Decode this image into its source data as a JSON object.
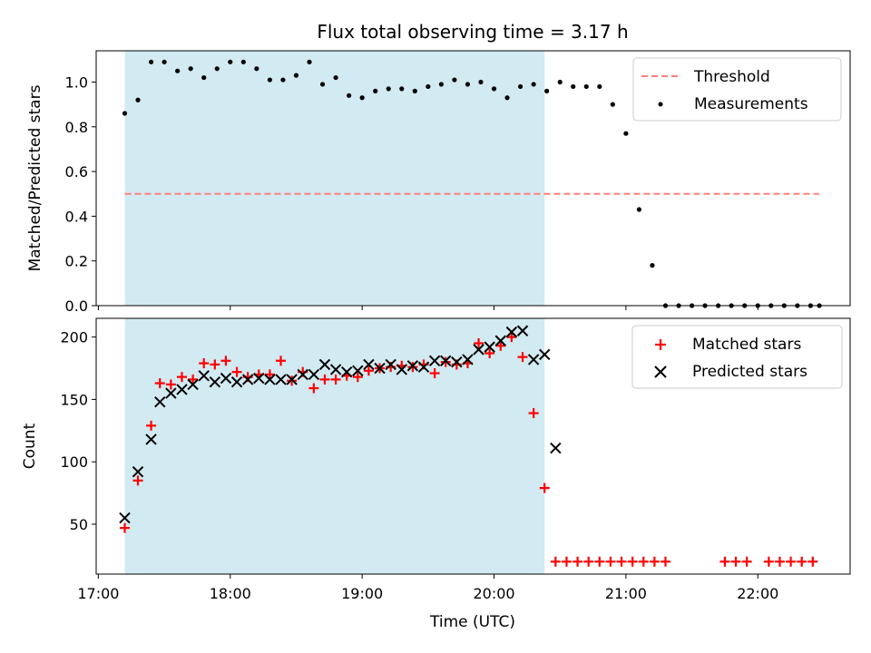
{
  "title": "Flux total observing time = 3.17 h",
  "colors": {
    "shade": "#add8e6",
    "threshold": "#ff7f7f",
    "measurement": "#000000",
    "matched": "#ff0000",
    "predicted": "#000000"
  },
  "chart_data": [
    {
      "type": "scatter",
      "ylabel": "Matched/Predicted stars",
      "ylim": [
        0,
        1.14
      ],
      "yticks": [
        "0.0",
        "0.2",
        "0.4",
        "0.6",
        "0.8",
        "1.0"
      ],
      "shade_range": [
        "17:12",
        "20:23"
      ],
      "legend": {
        "placement": "top-right",
        "entries": [
          "Threshold",
          "Measurements"
        ]
      },
      "threshold": {
        "name": "Threshold",
        "value": 0.5,
        "x_range": [
          "17:12",
          "22:28"
        ]
      },
      "series": [
        {
          "name": "Measurements",
          "points": [
            [
              "17:12",
              0.86
            ],
            [
              "17:18",
              0.92
            ],
            [
              "17:24",
              1.09
            ],
            [
              "17:30",
              1.09
            ],
            [
              "17:36",
              1.05
            ],
            [
              "17:42",
              1.06
            ],
            [
              "17:48",
              1.02
            ],
            [
              "17:54",
              1.06
            ],
            [
              "18:00",
              1.09
            ],
            [
              "18:06",
              1.09
            ],
            [
              "18:12",
              1.06
            ],
            [
              "18:18",
              1.01
            ],
            [
              "18:24",
              1.01
            ],
            [
              "18:30",
              1.03
            ],
            [
              "18:36",
              1.09
            ],
            [
              "18:42",
              0.99
            ],
            [
              "18:48",
              1.02
            ],
            [
              "18:54",
              0.94
            ],
            [
              "19:00",
              0.93
            ],
            [
              "19:06",
              0.96
            ],
            [
              "19:12",
              0.97
            ],
            [
              "19:18",
              0.97
            ],
            [
              "19:24",
              0.96
            ],
            [
              "19:30",
              0.98
            ],
            [
              "19:36",
              0.99
            ],
            [
              "19:42",
              1.01
            ],
            [
              "19:48",
              0.99
            ],
            [
              "19:54",
              1.0
            ],
            [
              "20:00",
              0.97
            ],
            [
              "20:06",
              0.93
            ],
            [
              "20:12",
              0.98
            ],
            [
              "20:18",
              0.99
            ],
            [
              "20:24",
              0.96
            ],
            [
              "20:30",
              1.0
            ],
            [
              "20:36",
              0.98
            ],
            [
              "20:42",
              0.98
            ],
            [
              "20:48",
              0.98
            ],
            [
              "20:54",
              0.9
            ],
            [
              "21:00",
              0.77
            ],
            [
              "21:06",
              0.43
            ],
            [
              "21:12",
              0.18
            ],
            [
              "21:18",
              0.0
            ],
            [
              "21:24",
              0.0
            ],
            [
              "21:30",
              0.0
            ],
            [
              "21:36",
              0.0
            ],
            [
              "21:42",
              0.0
            ],
            [
              "21:48",
              0.0
            ],
            [
              "21:54",
              0.0
            ],
            [
              "22:00",
              0.0
            ],
            [
              "22:06",
              0.0
            ],
            [
              "22:12",
              0.0
            ],
            [
              "22:18",
              0.0
            ],
            [
              "22:24",
              0.0
            ],
            [
              "22:28",
              0.0
            ]
          ]
        }
      ]
    },
    {
      "type": "scatter",
      "xlabel": "Time (UTC)",
      "ylabel": "Count",
      "ylim": [
        10,
        215
      ],
      "yticks": [
        "50",
        "100",
        "150",
        "200"
      ],
      "xlim": [
        "16:59",
        "22:42"
      ],
      "xticks": [
        "17:00",
        "18:00",
        "19:00",
        "20:00",
        "21:00",
        "22:00"
      ],
      "shade_range": [
        "17:12",
        "20:23"
      ],
      "legend": {
        "placement": "top-right",
        "entries": [
          "Matched stars",
          "Predicted stars"
        ]
      },
      "series": [
        {
          "name": "Matched stars",
          "points": [
            [
              "17:12",
              47
            ],
            [
              "17:18",
              85
            ],
            [
              "17:24",
              129
            ],
            [
              "17:28",
              163
            ],
            [
              "17:33",
              162
            ],
            [
              "17:38",
              168
            ],
            [
              "17:43",
              166
            ],
            [
              "17:48",
              179
            ],
            [
              "17:53",
              178
            ],
            [
              "17:58",
              181
            ],
            [
              "18:03",
              172
            ],
            [
              "18:08",
              168
            ],
            [
              "18:13",
              170
            ],
            [
              "18:18",
              170
            ],
            [
              "18:23",
              181
            ],
            [
              "18:28",
              165
            ],
            [
              "18:33",
              172
            ],
            [
              "18:38",
              159
            ],
            [
              "18:43",
              166
            ],
            [
              "18:48",
              166
            ],
            [
              "18:53",
              169
            ],
            [
              "18:58",
              168
            ],
            [
              "19:03",
              173
            ],
            [
              "19:08",
              175
            ],
            [
              "19:13",
              176
            ],
            [
              "19:18",
              177
            ],
            [
              "19:23",
              176
            ],
            [
              "19:28",
              178
            ],
            [
              "19:33",
              171
            ],
            [
              "19:38",
              180
            ],
            [
              "19:43",
              178
            ],
            [
              "19:48",
              179
            ],
            [
              "19:53",
              195
            ],
            [
              "19:58",
              187
            ],
            [
              "20:03",
              193
            ],
            [
              "20:08",
              200
            ],
            [
              "20:13",
              184
            ],
            [
              "20:18",
              139
            ],
            [
              "20:23",
              79
            ],
            [
              "20:28",
              20
            ],
            [
              "20:33",
              20
            ],
            [
              "20:38",
              20
            ],
            [
              "20:43",
              20
            ],
            [
              "20:48",
              20
            ],
            [
              "20:53",
              20
            ],
            [
              "20:58",
              20
            ],
            [
              "21:03",
              20
            ],
            [
              "21:08",
              20
            ],
            [
              "21:13",
              20
            ],
            [
              "21:18",
              20
            ],
            [
              "21:45",
              20
            ],
            [
              "21:50",
              20
            ],
            [
              "21:55",
              20
            ],
            [
              "22:05",
              20
            ],
            [
              "22:10",
              20
            ],
            [
              "22:15",
              20
            ],
            [
              "22:20",
              20
            ],
            [
              "22:25",
              20
            ]
          ]
        },
        {
          "name": "Predicted stars",
          "points": [
            [
              "17:12",
              55
            ],
            [
              "17:18",
              92
            ],
            [
              "17:24",
              118
            ],
            [
              "17:28",
              148
            ],
            [
              "17:33",
              155
            ],
            [
              "17:38",
              158
            ],
            [
              "17:43",
              162
            ],
            [
              "17:48",
              169
            ],
            [
              "17:53",
              164
            ],
            [
              "17:58",
              167
            ],
            [
              "18:03",
              164
            ],
            [
              "18:08",
              166
            ],
            [
              "18:13",
              167
            ],
            [
              "18:18",
              166
            ],
            [
              "18:23",
              166
            ],
            [
              "18:28",
              166
            ],
            [
              "18:33",
              170
            ],
            [
              "18:38",
              170
            ],
            [
              "18:43",
              178
            ],
            [
              "18:48",
              174
            ],
            [
              "18:53",
              172
            ],
            [
              "18:58",
              173
            ],
            [
              "19:03",
              178
            ],
            [
              "19:08",
              175
            ],
            [
              "19:13",
              178
            ],
            [
              "19:18",
              174
            ],
            [
              "19:23",
              177
            ],
            [
              "19:28",
              176
            ],
            [
              "19:33",
              181
            ],
            [
              "19:38",
              181
            ],
            [
              "19:43",
              180
            ],
            [
              "19:48",
              182
            ],
            [
              "19:53",
              190
            ],
            [
              "19:58",
              192
            ],
            [
              "20:03",
              197
            ],
            [
              "20:08",
              204
            ],
            [
              "20:13",
              205
            ],
            [
              "20:18",
              182
            ],
            [
              "20:23",
              186
            ],
            [
              "20:28",
              111
            ]
          ]
        }
      ]
    }
  ]
}
